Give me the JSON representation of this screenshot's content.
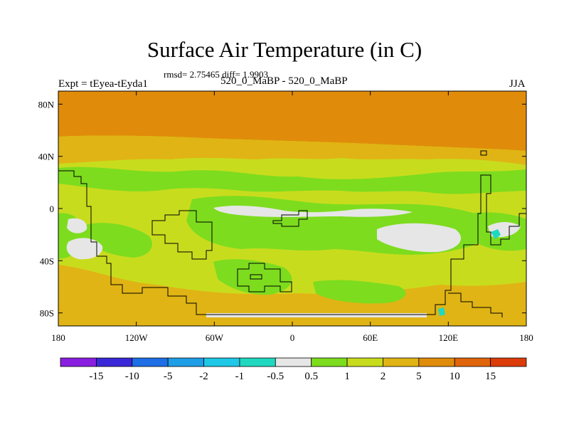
{
  "chart_data": {
    "type": "heatmap",
    "title": "Surface Air Temperature (in C)",
    "stats": "rmsd= 2.75465 diff= 1.9903",
    "left_label": "Expt = tEyea-tEyda1",
    "center_label": "520_0_MaBP - 520_0_MaBP",
    "right_label": "JJA",
    "x_ticks": [
      "180",
      "120W",
      "60W",
      "0",
      "60E",
      "120E",
      "180"
    ],
    "y_ticks": [
      "80N",
      "40N",
      "0",
      "40S",
      "80S"
    ],
    "xlim": [
      -180,
      180
    ],
    "ylim": [
      -90,
      90
    ],
    "colorbar": {
      "labels": [
        "-15",
        "-10",
        "-5",
        "-2",
        "-1",
        "-0.5",
        "0.5",
        "1",
        "2",
        "5",
        "10",
        "15"
      ],
      "colors": [
        "#8a1ee0",
        "#3a28d8",
        "#1e6ee6",
        "#1e9ee6",
        "#1ec8e6",
        "#20d8c0",
        "#e6e6e6",
        "#7ddc1e",
        "#c8dc1e",
        "#e0b414",
        "#e08c0a",
        "#e0640a",
        "#dc3c0a"
      ]
    }
  }
}
